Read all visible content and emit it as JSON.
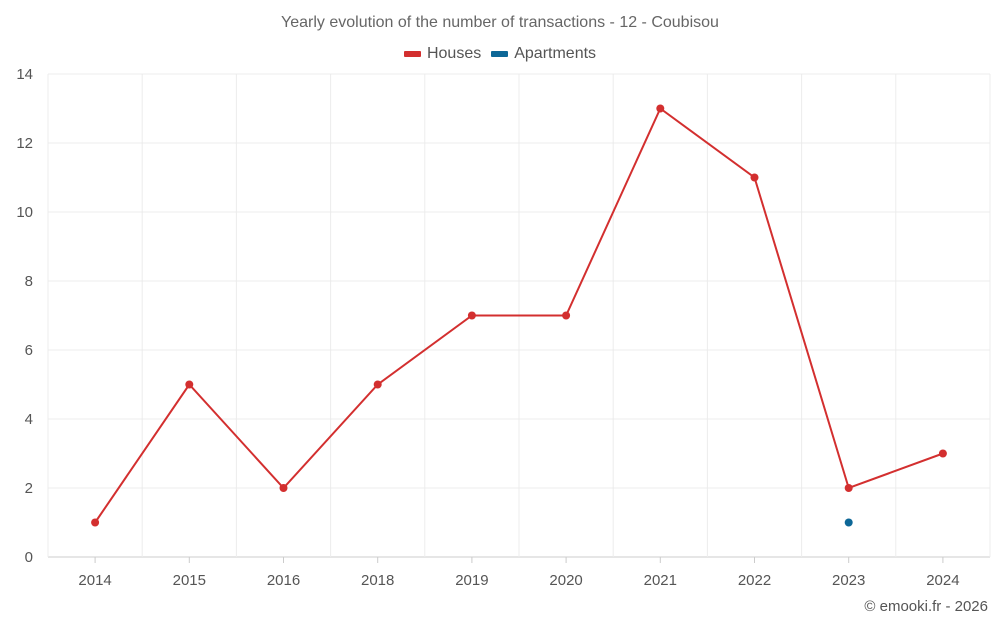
{
  "chart_data": {
    "type": "line",
    "title": "Yearly evolution of the number of transactions - 12 - Coubisou",
    "categories": [
      "2014",
      "2015",
      "2016",
      "2018",
      "2019",
      "2020",
      "2021",
      "2022",
      "2023",
      "2024"
    ],
    "series": [
      {
        "name": "Houses",
        "color": "#d32f2f",
        "values": [
          1,
          5,
          2,
          5,
          7,
          7,
          13,
          11,
          2,
          3
        ]
      },
      {
        "name": "Apartments",
        "color": "#0d6797",
        "values": [
          null,
          null,
          null,
          null,
          null,
          null,
          null,
          null,
          1,
          null
        ]
      }
    ],
    "yticks": [
      0,
      2,
      4,
      6,
      8,
      10,
      12,
      14
    ],
    "ylim": [
      0,
      14
    ],
    "xlabel": "",
    "ylabel": "",
    "grid": true,
    "legend_position": "top-center"
  },
  "credit": "© emooki.fr - 2026"
}
